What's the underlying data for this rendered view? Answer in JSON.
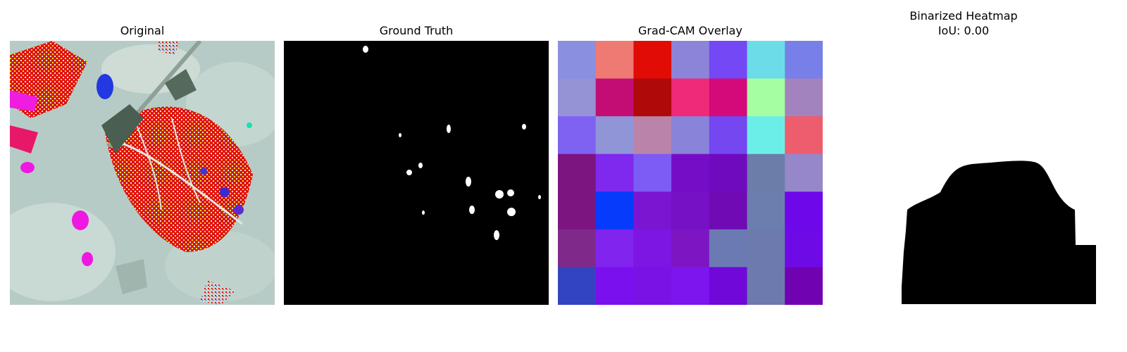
{
  "panels": {
    "original": {
      "title": "Original"
    },
    "ground_truth": {
      "title": "Ground Truth"
    },
    "gradcam": {
      "title": "Grad-CAM Overlay",
      "grid_colors": [
        [
          "#8a8fe0",
          "#ef7a73",
          "#e00c05",
          "#8c84d8",
          "#7448f4",
          "#6cdce8",
          "#787fe8"
        ],
        [
          "#9692d6",
          "#c30d75",
          "#b00909",
          "#ef2a78",
          "#d40a7a",
          "#a6fea2",
          "#a383be"
        ],
        [
          "#7f62f2",
          "#9095d8",
          "#ba83aa",
          "#8983d9",
          "#7447f1",
          "#6ceee8",
          "#ee5d6e"
        ],
        [
          "#7d1580",
          "#7f28ee",
          "#7c5cf4",
          "#760dc6",
          "#700abe",
          "#6c7daa",
          "#9587c9"
        ],
        [
          "#7d1581",
          "#073bfb",
          "#7c15d2",
          "#7611c5",
          "#700ab4",
          "#6c7ead",
          "#6e07e9"
        ],
        [
          "#7f2a8a",
          "#8024ee",
          "#7d16e3",
          "#7d16c2",
          "#6c7ab4",
          "#6c7aae",
          "#6e0ae6"
        ],
        [
          "#3344c2",
          "#7b10ee",
          "#7a12e5",
          "#7d15ee",
          "#6f08d9",
          "#6c7aad",
          "#7002b2"
        ]
      ]
    },
    "binarized": {
      "title_line1": "Binarized Heatmap",
      "title_line2": "IoU: 0.00"
    }
  }
}
